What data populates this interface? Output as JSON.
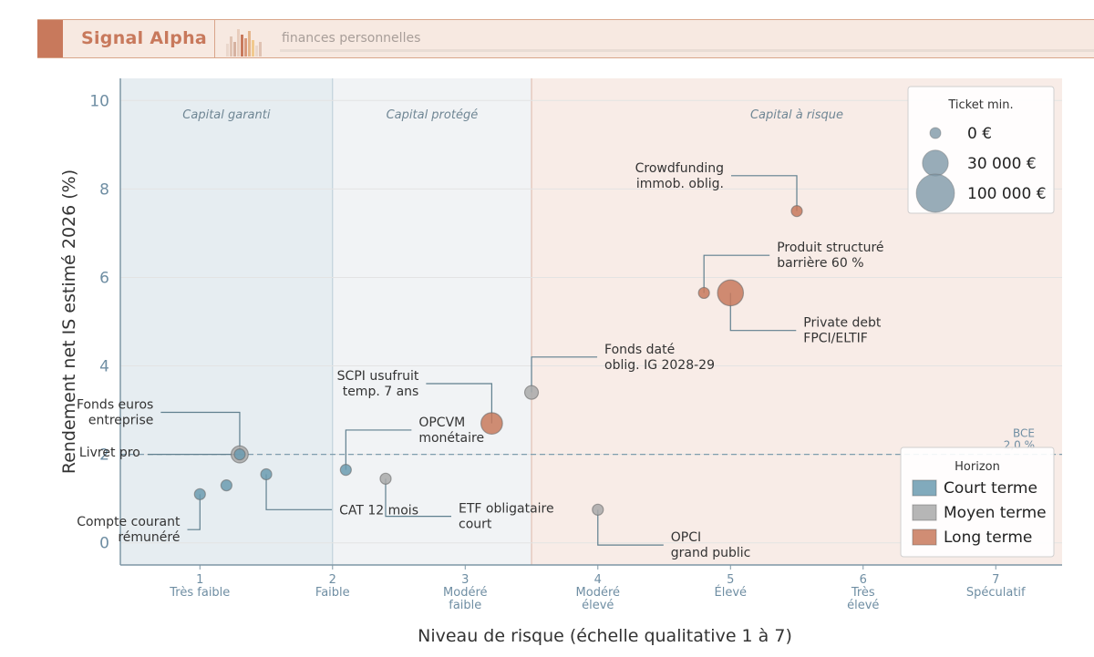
{
  "header": {
    "brand": "Signal Alpha",
    "tagline": "finances personnelles"
  },
  "chart_data": {
    "type": "scatter",
    "title": "",
    "xlabel": "Niveau de risque (échelle qualitative 1 à 7)",
    "ylabel": "Rendement net IS estimé 2026 (%)",
    "xlim": [
      0.4,
      7.5
    ],
    "ylim": [
      -0.5,
      10.5
    ],
    "y_ticks": [
      0,
      2,
      4,
      6,
      8,
      10
    ],
    "x_ticks": [
      {
        "value": 1,
        "label1": "1",
        "label2": "Très faible",
        "label3": ""
      },
      {
        "value": 2,
        "label1": "2",
        "label2": "Faible",
        "label3": ""
      },
      {
        "value": 3,
        "label1": "3",
        "label2": "Modéré",
        "label3": "faible"
      },
      {
        "value": 4,
        "label1": "4",
        "label2": "Modéré",
        "label3": "élevé"
      },
      {
        "value": 5,
        "label1": "5",
        "label2": "Élevé",
        "label3": ""
      },
      {
        "value": 6,
        "label1": "6",
        "label2": "Très",
        "label3": "élevé"
      },
      {
        "value": 7,
        "label1": "7",
        "label2": "Spéculatif",
        "label3": ""
      }
    ],
    "zones": [
      {
        "label": "Capital garanti",
        "x0": 0.4,
        "x1": 2.0,
        "color": "#e6edf1"
      },
      {
        "label": "Capital protégé",
        "x0": 2.0,
        "x1": 3.5,
        "color": "#f1f3f5"
      },
      {
        "label": "Capital à risque",
        "x0": 3.5,
        "x1": 7.5,
        "color": "#f8ece7"
      }
    ],
    "reference_line": {
      "y": 2.0,
      "label1": "BCE",
      "label2": "2,0 %"
    },
    "colors": {
      "court": "#6b9bb0",
      "moyen": "#a9a9a9",
      "long": "#c8795c",
      "grid": "#e3e3e3",
      "axis": "#7e97a6",
      "text": "#333333"
    },
    "series": [
      {
        "name": "Court terme",
        "color": "#6b9bb0"
      },
      {
        "name": "Moyen terme",
        "color": "#a9a9a9"
      },
      {
        "name": "Long terme",
        "color": "#c8795c"
      }
    ],
    "points": [
      {
        "label1": "Compte courant",
        "label2": "rémunéré",
        "x": 1.0,
        "y": 1.1,
        "ticket": 0,
        "horizon": "court",
        "anchor": "end",
        "lx": 0.85,
        "ly": 0.3,
        "elbow": "v"
      },
      {
        "label1": "",
        "label2": "",
        "x": 1.2,
        "y": 1.3,
        "ticket": 0,
        "horizon": "court",
        "anchor": "",
        "lx": 0,
        "ly": 0,
        "elbow": ""
      },
      {
        "label1": "Fonds euros",
        "label2": "entreprise",
        "x": 1.3,
        "y": 2.0,
        "ticket": 5000,
        "horizon": "moyen",
        "anchor": "end",
        "lx": 0.65,
        "ly": 2.95,
        "elbow": "v"
      },
      {
        "label1": "Livret pro",
        "label2": "",
        "x": 1.3,
        "y": 2.0,
        "ticket": 0,
        "horizon": "court",
        "anchor": "end",
        "lx": 0.55,
        "ly": 2.05,
        "elbow": "h"
      },
      {
        "label1": "CAT 12 mois",
        "label2": "",
        "x": 1.5,
        "y": 1.55,
        "ticket": 0,
        "horizon": "court",
        "anchor": "start",
        "lx": 2.05,
        "ly": 0.75,
        "elbow": "v"
      },
      {
        "label1": "OPCVM",
        "label2": "monétaire",
        "x": 2.1,
        "y": 1.65,
        "ticket": 0,
        "horizon": "court",
        "anchor": "start",
        "lx": 2.65,
        "ly": 2.55,
        "elbow": "v"
      },
      {
        "label1": "ETF obligataire",
        "label2": "court",
        "x": 2.4,
        "y": 1.45,
        "ticket": 0,
        "horizon": "moyen",
        "anchor": "start",
        "lx": 2.95,
        "ly": 0.6,
        "elbow": "v"
      },
      {
        "label1": "SCPI usufruit",
        "label2": "temp. 7 ans",
        "x": 3.2,
        "y": 2.7,
        "ticket": 15000,
        "horizon": "long",
        "anchor": "end",
        "lx": 2.65,
        "ly": 3.6,
        "elbow": "v"
      },
      {
        "label1": "Fonds daté",
        "label2": "oblig. IG 2028-29",
        "x": 3.5,
        "y": 3.4,
        "ticket": 1000,
        "horizon": "moyen",
        "anchor": "start",
        "lx": 4.05,
        "ly": 4.2,
        "elbow": "v"
      },
      {
        "label1": "OPCI",
        "label2": "grand public",
        "x": 4.0,
        "y": 0.75,
        "ticket": 0,
        "horizon": "moyen",
        "anchor": "start",
        "lx": 4.55,
        "ly": -0.05,
        "elbow": "v"
      },
      {
        "label1": "Crowdfunding",
        "label2": "immob. oblig.",
        "x": 5.5,
        "y": 7.5,
        "ticket": 0,
        "horizon": "long",
        "anchor": "end",
        "lx": 4.95,
        "ly": 8.3,
        "elbow": "v"
      },
      {
        "label1": "Produit structuré",
        "label2": "barrière 60 %",
        "x": 4.8,
        "y": 5.65,
        "ticket": 0,
        "horizon": "long",
        "anchor": "start",
        "lx": 5.35,
        "ly": 6.5,
        "elbow": "v"
      },
      {
        "label1": "Private debt",
        "label2": "FPCI/ELTIF",
        "x": 5.0,
        "y": 5.65,
        "ticket": 30000,
        "horizon": "long",
        "anchor": "start",
        "lx": 5.55,
        "ly": 4.8,
        "elbow": "v"
      }
    ],
    "size_legend": {
      "title": "Ticket min.",
      "items": [
        {
          "label": "0 €",
          "ticket": 0
        },
        {
          "label": "30 000 €",
          "ticket": 30000
        },
        {
          "label": "100 000 €",
          "ticket": 100000
        }
      ]
    },
    "color_legend": {
      "title": "Horizon",
      "placement": "lower-right"
    },
    "size_legend_placement": "upper-right"
  }
}
